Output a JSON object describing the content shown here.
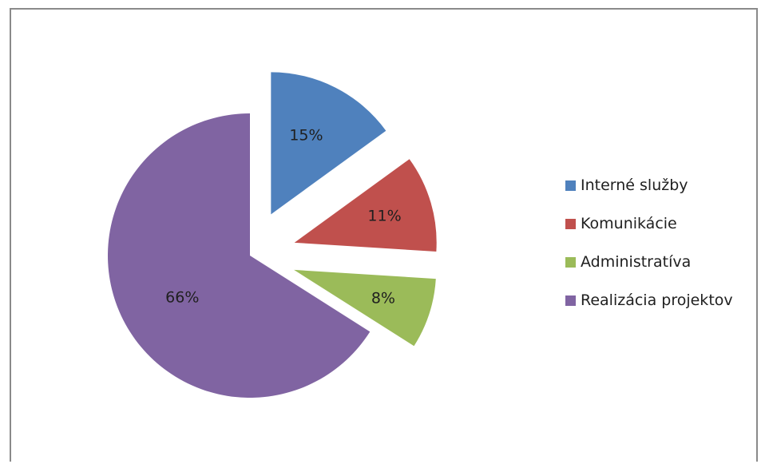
{
  "chart_data": {
    "type": "pie",
    "exploded": true,
    "categories": [
      "Interné služby",
      "Komunikácie",
      "Administratíva",
      "Realizácia projektov"
    ],
    "values": [
      15,
      11,
      8,
      66
    ],
    "value_labels": [
      "15%",
      "11%",
      "8%",
      "66%"
    ],
    "colors": [
      "#4f81bd",
      "#c0504d",
      "#9bbb59",
      "#8064a2"
    ],
    "title": "",
    "legend_position": "right"
  }
}
